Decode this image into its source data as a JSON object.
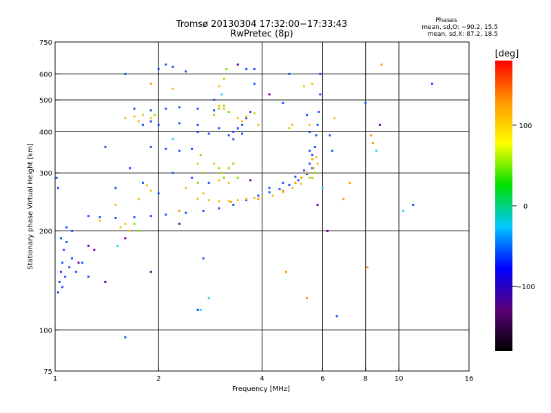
{
  "chart_data": {
    "type": "scatter",
    "title": "Tromsø 20130304 17:32:00−17:33:43",
    "subtitle": "RwPretec (8p)",
    "xlabel": "Frequency [MHz]",
    "ylabel": "Stationary phase Virtual Height [km]",
    "x_scale": "log",
    "y_scale": "log",
    "xlim": [
      1,
      16
    ],
    "ylim": [
      75,
      750
    ],
    "x_ticks": [
      1,
      2,
      4,
      6,
      8,
      10,
      16
    ],
    "x_tick_labels": [
      "1",
      "2",
      "4",
      "6",
      "8",
      "10",
      "16"
    ],
    "y_ticks": [
      75,
      100,
      200,
      300,
      400,
      500,
      600,
      750
    ],
    "y_tick_labels": [
      "75",
      "100",
      "200",
      "300",
      "400",
      "500",
      "600",
      "750"
    ],
    "grid": true,
    "grid_x": [
      2,
      4,
      6,
      8,
      10
    ],
    "grid_y": [
      100,
      200,
      300,
      400,
      500,
      600
    ],
    "colorbar": {
      "label": "[deg]",
      "range": [
        -180,
        180
      ],
      "ticks": [
        100,
        0,
        -100
      ],
      "tick_labels": [
        "100",
        "0",
        "−100"
      ],
      "colors": [
        "#000000",
        "#5a0078",
        "#0000ff",
        "#00c8ff",
        "#00e000",
        "#ffff00",
        "#ff9900",
        "#ff0000"
      ]
    },
    "stats": {
      "heading": "Phases",
      "line_o": "mean, sd,O: −90.2, 15.5",
      "line_x": "mean, sd,X:  87.2, 18.5"
    },
    "series": [
      {
        "name": "",
        "color": "#1c50ff",
        "phase": -90,
        "points": [
          [
            1.02,
            130
          ],
          [
            1.03,
            140
          ],
          [
            1.04,
            150
          ],
          [
            1.05,
            160
          ],
          [
            1.06,
            175
          ],
          [
            1.08,
            185
          ],
          [
            1.05,
            135
          ],
          [
            1.07,
            145
          ],
          [
            1.1,
            155
          ],
          [
            1.12,
            165
          ],
          [
            1.04,
            190
          ],
          [
            1.02,
            270
          ],
          [
            1.01,
            290
          ],
          [
            1.15,
            150
          ],
          [
            1.2,
            160
          ],
          [
            1.25,
            145
          ],
          [
            1.08,
            205
          ],
          [
            1.25,
            222
          ],
          [
            1.35,
            220
          ],
          [
            1.5,
            219
          ],
          [
            1.7,
            220
          ],
          [
            1.9,
            222
          ],
          [
            2.1,
            224
          ],
          [
            2.4,
            227
          ],
          [
            2.7,
            230
          ],
          [
            3.0,
            234
          ],
          [
            3.3,
            240
          ],
          [
            3.6,
            248
          ],
          [
            3.9,
            256
          ],
          [
            4.2,
            262
          ],
          [
            4.5,
            268
          ],
          [
            4.8,
            276
          ],
          [
            5.1,
            285
          ],
          [
            5.4,
            298
          ],
          [
            5.6,
            310
          ],
          [
            4.2,
            270
          ],
          [
            4.6,
            280
          ],
          [
            5.0,
            292
          ],
          [
            5.3,
            305
          ],
          [
            5.5,
            320
          ],
          [
            5.6,
            340
          ],
          [
            5.7,
            360
          ],
          [
            5.75,
            390
          ],
          [
            5.8,
            420
          ],
          [
            5.85,
            460
          ],
          [
            5.9,
            520
          ],
          [
            5.9,
            600
          ],
          [
            5.5,
            400
          ],
          [
            5.5,
            350
          ],
          [
            5.4,
            450
          ],
          [
            3.2,
            390
          ],
          [
            3.3,
            400
          ],
          [
            3.4,
            410
          ],
          [
            3.5,
            420
          ],
          [
            3.6,
            440
          ],
          [
            3.7,
            460
          ],
          [
            3.3,
            380
          ],
          [
            3.5,
            395
          ],
          [
            2.8,
            395
          ],
          [
            2.6,
            400
          ],
          [
            3.0,
            410
          ],
          [
            1.7,
            470
          ],
          [
            1.9,
            465
          ],
          [
            2.1,
            470
          ],
          [
            2.3,
            475
          ],
          [
            2.6,
            470
          ],
          [
            2.9,
            465
          ],
          [
            1.8,
            420
          ],
          [
            2.0,
            420
          ],
          [
            2.3,
            425
          ],
          [
            2.6,
            420
          ],
          [
            1.9,
            360
          ],
          [
            2.1,
            355
          ],
          [
            2.3,
            350
          ],
          [
            2.5,
            355
          ],
          [
            2.2,
            300
          ],
          [
            2.5,
            290
          ],
          [
            2.8,
            280
          ],
          [
            1.8,
            280
          ],
          [
            2.0,
            260
          ],
          [
            1.5,
            270
          ],
          [
            1.6,
            600
          ],
          [
            2.0,
            620
          ],
          [
            2.1,
            640
          ],
          [
            2.2,
            630
          ],
          [
            2.4,
            610
          ],
          [
            1.4,
            360
          ],
          [
            1.65,
            310
          ],
          [
            3.6,
            620
          ],
          [
            3.8,
            560
          ],
          [
            4.8,
            600
          ],
          [
            6.3,
            390
          ],
          [
            6.4,
            350
          ],
          [
            6.6,
            110
          ],
          [
            2.7,
            165
          ],
          [
            2.6,
            115
          ],
          [
            1.9,
            430
          ],
          [
            1.6,
            95
          ],
          [
            1.12,
            200
          ],
          [
            8.0,
            490
          ],
          [
            12.5,
            560
          ],
          [
            11.0,
            240
          ],
          [
            3.8,
            620
          ],
          [
            4.6,
            490
          ],
          [
            2.9,
            500
          ]
        ]
      },
      {
        "name": "",
        "color": "#f0c020",
        "phase": 110,
        "points": [
          [
            2.6,
            250
          ],
          [
            2.8,
            248
          ],
          [
            3.0,
            246
          ],
          [
            3.2,
            246
          ],
          [
            3.4,
            248
          ],
          [
            3.6,
            250
          ],
          [
            3.8,
            252
          ],
          [
            4.0,
            254
          ],
          [
            4.3,
            256
          ],
          [
            4.6,
            262
          ],
          [
            4.9,
            270
          ],
          [
            5.2,
            278
          ],
          [
            5.5,
            290
          ],
          [
            5.7,
            300
          ],
          [
            5.8,
            320
          ],
          [
            5.75,
            335
          ],
          [
            5.65,
            310
          ],
          [
            1.6,
            440
          ],
          [
            1.7,
            445
          ],
          [
            1.8,
            450
          ],
          [
            1.75,
            430
          ],
          [
            1.9,
            440
          ],
          [
            2.7,
            260
          ],
          [
            2.4,
            270
          ],
          [
            3.0,
            480
          ],
          [
            3.1,
            470
          ],
          [
            3.2,
            460
          ],
          [
            3.4,
            440
          ],
          [
            3.5,
            430
          ],
          [
            3.6,
            445
          ],
          [
            3.8,
            455
          ],
          [
            3.9,
            420
          ],
          [
            3.0,
            285
          ],
          [
            3.1,
            290
          ],
          [
            3.2,
            280
          ],
          [
            1.85,
            275
          ],
          [
            1.9,
            265
          ],
          [
            1.75,
            250
          ],
          [
            1.5,
            240
          ],
          [
            1.35,
            215
          ],
          [
            1.55,
            205
          ],
          [
            1.6,
            210
          ],
          [
            1.65,
            200
          ],
          [
            4.8,
            410
          ],
          [
            4.9,
            420
          ],
          [
            5.5,
            420
          ],
          [
            5.3,
            550
          ],
          [
            5.6,
            560
          ],
          [
            3.0,
            550
          ],
          [
            3.1,
            580
          ],
          [
            2.2,
            540
          ],
          [
            6.5,
            440
          ],
          [
            2.6,
            320
          ],
          [
            2.9,
            320
          ]
        ]
      },
      {
        "name": "",
        "color": "#90e000",
        "phase": 60,
        "points": [
          [
            3.0,
            470
          ],
          [
            3.1,
            480
          ],
          [
            3.2,
            460
          ],
          [
            2.9,
            450
          ],
          [
            3.05,
            300
          ],
          [
            3.2,
            310
          ],
          [
            3.1,
            290
          ],
          [
            3.0,
            310
          ],
          [
            3.3,
            320
          ],
          [
            2.6,
            280
          ],
          [
            2.7,
            300
          ],
          [
            3.4,
            290
          ],
          [
            1.7,
            210
          ],
          [
            1.75,
            200
          ],
          [
            5.6,
            290
          ],
          [
            5.7,
            300
          ],
          [
            3.15,
            620
          ],
          [
            2.65,
            340
          ],
          [
            1.95,
            450
          ]
        ]
      },
      {
        "name": "",
        "color": "#ff9900",
        "phase": 150,
        "points": [
          [
            5.0,
            280
          ],
          [
            5.2,
            290
          ],
          [
            5.4,
            300
          ],
          [
            4.6,
            265
          ],
          [
            4.7,
            150
          ],
          [
            5.4,
            125
          ],
          [
            8.9,
            640
          ],
          [
            8.3,
            390
          ],
          [
            8.1,
            155
          ],
          [
            6.9,
            250
          ],
          [
            2.3,
            230
          ],
          [
            7.2,
            280
          ],
          [
            3.25,
            245
          ],
          [
            3.9,
            250
          ],
          [
            5.6,
            330
          ],
          [
            1.9,
            560
          ],
          [
            8.4,
            370
          ]
        ]
      },
      {
        "name": "",
        "color": "#6a00a0",
        "phase": -150,
        "points": [
          [
            1.17,
            160
          ],
          [
            1.3,
            175
          ],
          [
            1.4,
            140
          ],
          [
            1.25,
            180
          ],
          [
            1.6,
            190
          ],
          [
            1.9,
            150
          ],
          [
            2.3,
            210
          ],
          [
            6.2,
            200
          ],
          [
            5.8,
            240
          ],
          [
            3.4,
            640
          ],
          [
            4.2,
            520
          ],
          [
            8.8,
            420
          ],
          [
            3.7,
            285
          ]
        ]
      },
      {
        "name": "",
        "color": "#20d8e8",
        "phase": -10,
        "points": [
          [
            2.65,
            115
          ],
          [
            2.8,
            125
          ],
          [
            8.6,
            350
          ],
          [
            2.2,
            380
          ],
          [
            3.05,
            520
          ],
          [
            1.52,
            180
          ],
          [
            10.3,
            230
          ],
          [
            6.0,
            270
          ]
        ]
      }
    ]
  }
}
